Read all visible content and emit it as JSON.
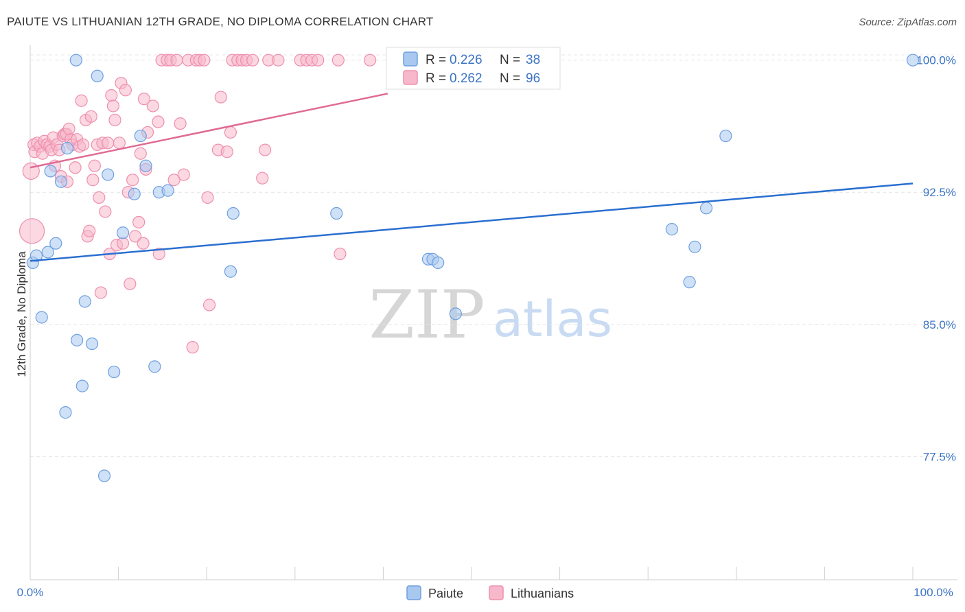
{
  "title": "PAIUTE VS LITHUANIAN 12TH GRADE, NO DIPLOMA CORRELATION CHART",
  "source": "Source: ZipAtlas.com",
  "watermark": {
    "zip": "ZIP",
    "atlas": "atlas"
  },
  "legend": {
    "r_label": "R =",
    "n_label": "N =",
    "paiute": {
      "r": "0.226",
      "n": "38"
    },
    "lithuanians": {
      "r": "0.262",
      "n": "96"
    }
  },
  "colors": {
    "paiute_fill": "#a8c8f0",
    "paiute_stroke": "#6f9fe0",
    "paiute_line": "#2a6fd0",
    "lith_fill": "#f7b8cb",
    "lith_stroke": "#ee8fae",
    "lith_line": "#e06a93",
    "tick_label": "#3b74c4"
  },
  "chart_data": {
    "type": "scatter",
    "title": "PAIUTE VS LITHUANIAN 12TH GRADE, NO DIPLOMA CORRELATION CHART",
    "xlabel": "",
    "ylabel": "12th Grade, No Diploma",
    "xlim": [
      0,
      100
    ],
    "ylim": [
      70.5,
      101.0
    ],
    "x_tick_labels": [
      "0.0%",
      "100.0%"
    ],
    "y_ticks": [
      77.5,
      85.0,
      92.5,
      100.0
    ],
    "y_tick_labels": [
      "77.5%",
      "85.0%",
      "92.5%",
      "100.0%"
    ],
    "grid": true,
    "legend_position": "top-center",
    "series": [
      {
        "name": "Paiute",
        "points": [
          [
            0.3,
            88.5
          ],
          [
            0.7,
            88.9
          ],
          [
            1.3,
            85.4
          ],
          [
            2.0,
            89.1
          ],
          [
            2.3,
            93.7
          ],
          [
            2.9,
            89.6
          ],
          [
            3.5,
            93.1
          ],
          [
            4.0,
            80.0
          ],
          [
            4.2,
            95.0
          ],
          [
            5.2,
            100.0
          ],
          [
            5.3,
            84.1
          ],
          [
            5.9,
            81.5
          ],
          [
            6.2,
            86.3
          ],
          [
            7.0,
            83.9
          ],
          [
            7.6,
            99.1
          ],
          [
            8.4,
            76.4
          ],
          [
            8.8,
            93.5
          ],
          [
            9.5,
            82.3
          ],
          [
            10.5,
            90.2
          ],
          [
            11.8,
            92.4
          ],
          [
            12.5,
            95.7
          ],
          [
            13.1,
            94.0
          ],
          [
            14.1,
            82.6
          ],
          [
            14.6,
            92.5
          ],
          [
            15.6,
            92.6
          ],
          [
            22.7,
            88.0
          ],
          [
            23.0,
            91.3
          ],
          [
            34.7,
            91.3
          ],
          [
            45.1,
            88.7
          ],
          [
            45.6,
            88.7
          ],
          [
            46.2,
            88.5
          ],
          [
            48.2,
            85.6
          ],
          [
            72.7,
            90.4
          ],
          [
            74.7,
            87.4
          ],
          [
            75.3,
            89.4
          ],
          [
            76.6,
            91.6
          ],
          [
            78.8,
            95.7
          ],
          [
            100.0,
            100.0
          ]
        ]
      },
      {
        "name": "Lithuanians",
        "points": [
          [
            0.1,
            93.7
          ],
          [
            0.2,
            90.3
          ],
          [
            0.4,
            95.2
          ],
          [
            0.5,
            94.8
          ],
          [
            0.8,
            95.3
          ],
          [
            1.1,
            95.1
          ],
          [
            1.4,
            94.7
          ],
          [
            1.6,
            95.4
          ],
          [
            1.9,
            95.2
          ],
          [
            2.2,
            95.1
          ],
          [
            2.4,
            94.9
          ],
          [
            2.6,
            95.6
          ],
          [
            2.8,
            94.0
          ],
          [
            3.0,
            95.2
          ],
          [
            3.3,
            94.9
          ],
          [
            3.5,
            93.4
          ],
          [
            3.7,
            95.7
          ],
          [
            3.9,
            95.8
          ],
          [
            4.1,
            95.8
          ],
          [
            4.2,
            93.1
          ],
          [
            4.4,
            96.1
          ],
          [
            4.6,
            95.5
          ],
          [
            4.8,
            95.2
          ],
          [
            5.1,
            93.9
          ],
          [
            5.3,
            95.5
          ],
          [
            5.6,
            95.1
          ],
          [
            5.8,
            97.7
          ],
          [
            6.0,
            95.2
          ],
          [
            6.3,
            96.6
          ],
          [
            6.5,
            90.0
          ],
          [
            6.7,
            90.3
          ],
          [
            6.9,
            96.8
          ],
          [
            7.1,
            93.2
          ],
          [
            7.3,
            94.0
          ],
          [
            7.6,
            95.2
          ],
          [
            7.8,
            92.2
          ],
          [
            8.0,
            86.8
          ],
          [
            8.2,
            95.3
          ],
          [
            8.5,
            91.4
          ],
          [
            8.8,
            95.3
          ],
          [
            9.0,
            89.0
          ],
          [
            9.2,
            98.0
          ],
          [
            9.4,
            97.4
          ],
          [
            9.6,
            96.6
          ],
          [
            9.8,
            89.5
          ],
          [
            10.1,
            95.3
          ],
          [
            10.3,
            98.7
          ],
          [
            10.5,
            89.6
          ],
          [
            10.8,
            98.3
          ],
          [
            11.1,
            92.5
          ],
          [
            11.3,
            87.3
          ],
          [
            11.6,
            93.2
          ],
          [
            11.9,
            90.0
          ],
          [
            12.3,
            90.8
          ],
          [
            12.5,
            94.7
          ],
          [
            12.8,
            89.6
          ],
          [
            12.9,
            97.8
          ],
          [
            13.1,
            93.8
          ],
          [
            13.3,
            95.9
          ],
          [
            13.9,
            97.4
          ],
          [
            14.5,
            96.5
          ],
          [
            14.6,
            89.0
          ],
          [
            14.9,
            100.0
          ],
          [
            15.5,
            100.0
          ],
          [
            15.9,
            100.0
          ],
          [
            16.3,
            93.2
          ],
          [
            16.6,
            100.0
          ],
          [
            17.0,
            96.4
          ],
          [
            17.4,
            93.5
          ],
          [
            17.9,
            100.0
          ],
          [
            18.4,
            83.7
          ],
          [
            18.8,
            100.0
          ],
          [
            19.2,
            100.0
          ],
          [
            19.7,
            100.0
          ],
          [
            20.1,
            92.2
          ],
          [
            20.3,
            86.1
          ],
          [
            21.3,
            94.9
          ],
          [
            21.6,
            97.9
          ],
          [
            22.3,
            94.8
          ],
          [
            22.7,
            95.9
          ],
          [
            22.9,
            100.0
          ],
          [
            23.5,
            100.0
          ],
          [
            24.0,
            100.0
          ],
          [
            24.5,
            100.0
          ],
          [
            25.2,
            100.0
          ],
          [
            26.3,
            93.3
          ],
          [
            26.6,
            94.9
          ],
          [
            27.0,
            100.0
          ],
          [
            28.1,
            100.0
          ],
          [
            30.6,
            100.0
          ],
          [
            31.3,
            100.0
          ],
          [
            31.9,
            100.0
          ],
          [
            32.6,
            100.0
          ],
          [
            34.9,
            100.0
          ],
          [
            35.1,
            89.0
          ],
          [
            38.5,
            100.0
          ]
        ]
      }
    ],
    "trend_lines": [
      {
        "name": "Paiute",
        "x": [
          0,
          100
        ],
        "y": [
          88.6,
          93.0
        ]
      },
      {
        "name": "Lithuanians",
        "x": [
          0,
          40.5
        ],
        "y": [
          93.9,
          98.1
        ]
      }
    ]
  }
}
